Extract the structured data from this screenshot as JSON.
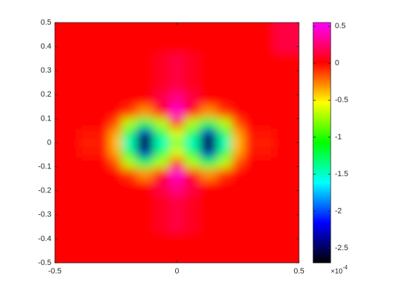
{
  "chart_data": {
    "type": "heatmap",
    "x": [
      -0.5,
      -0.3,
      -0.25,
      -0.2,
      -0.13,
      -0.06,
      0,
      0.06,
      0.13,
      0.2,
      0.25,
      0.3,
      0.5
    ],
    "y": [
      -0.5,
      -0.25,
      -0.18,
      -0.13,
      -0.08,
      -0.04,
      0,
      0.04,
      0.08,
      0.13,
      0.18,
      0.25,
      0.5
    ],
    "z": [
      [
        0,
        0,
        0,
        0,
        0,
        0,
        0,
        0,
        0,
        0,
        0,
        0,
        0
      ],
      [
        0,
        0,
        0,
        0,
        0,
        0.08,
        0.15,
        0.08,
        0,
        0,
        0,
        0,
        0
      ],
      [
        0,
        0,
        0,
        0,
        0,
        0.15,
        0.3,
        0.15,
        0,
        0,
        0,
        0,
        0
      ],
      [
        0,
        0,
        0,
        -0.1,
        -0.3,
        0.05,
        0.45,
        0.05,
        -0.3,
        -0.1,
        0,
        0,
        0
      ],
      [
        0,
        0,
        -0.15,
        -0.7,
        -1.25,
        -0.7,
        -0.05,
        -0.7,
        -1.25,
        -0.7,
        -0.15,
        0,
        0
      ],
      [
        0,
        -0.03,
        -0.35,
        -1.25,
        -2.3,
        -1.25,
        -0.6,
        -1.25,
        -2.3,
        -1.25,
        -0.35,
        -0.03,
        0
      ],
      [
        0,
        -0.05,
        -0.4,
        -1.5,
        -2.7,
        -1.5,
        -0.8,
        -1.5,
        -2.7,
        -1.5,
        -0.4,
        -0.05,
        0
      ],
      [
        0,
        -0.03,
        -0.35,
        -1.25,
        -2.3,
        -1.25,
        -0.6,
        -1.25,
        -2.3,
        -1.25,
        -0.35,
        -0.03,
        0
      ],
      [
        0,
        0,
        -0.15,
        -0.7,
        -1.25,
        -0.7,
        -0.05,
        -0.7,
        -1.25,
        -0.7,
        -0.15,
        0,
        0
      ],
      [
        0,
        0,
        0,
        -0.1,
        -0.3,
        0.05,
        0.45,
        0.05,
        -0.3,
        -0.1,
        0,
        0,
        0
      ],
      [
        0,
        0,
        0,
        0,
        0,
        0.15,
        0.3,
        0.15,
        0,
        0,
        0,
        0,
        0
      ],
      [
        0,
        0,
        0,
        0,
        0,
        0.08,
        0.15,
        0.08,
        0,
        0,
        0,
        0,
        0
      ],
      [
        0,
        0,
        0,
        0,
        0,
        0,
        0,
        0,
        0,
        0,
        0,
        0,
        0.15
      ]
    ],
    "xlim": [
      -0.5,
      0.5
    ],
    "ylim": [
      -0.5,
      0.5
    ],
    "xticks": [
      -0.5,
      0,
      0.5
    ],
    "yticks": [
      -0.5,
      -0.4,
      -0.3,
      -0.2,
      -0.1,
      0,
      0.1,
      0.2,
      0.3,
      0.4,
      0.5
    ],
    "colormap": [
      "#000000",
      "#0000ff",
      "#00ffff",
      "#00ff00",
      "#ffff00",
      "#ff0000",
      "#ff00ff"
    ],
    "clim": [
      -2.7,
      0.55
    ],
    "cticks": [
      -2.5,
      -2,
      -1.5,
      -1,
      -0.5,
      0,
      0.5
    ],
    "colorbar_exponent": {
      "base": "×10",
      "power": "-4"
    }
  }
}
